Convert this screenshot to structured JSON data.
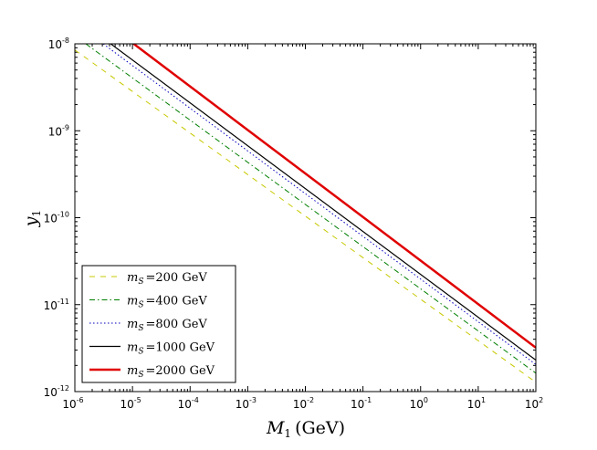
{
  "chart_data": {
    "type": "line",
    "xscale": "log",
    "yscale": "log",
    "xlim": [
      1e-06,
      100
    ],
    "ylim": [
      1e-12,
      1e-08
    ],
    "xlabel_var": "M",
    "xlabel_sub": "1",
    "xlabel_unit": "(GeV)",
    "ylabel_var": "y",
    "ylabel_sub": "1",
    "x_ticks": [
      {
        "value": 1e-06,
        "base": "10",
        "exp": "-6"
      },
      {
        "value": 1e-05,
        "base": "10",
        "exp": "-5"
      },
      {
        "value": 0.0001,
        "base": "10",
        "exp": "-4"
      },
      {
        "value": 0.001,
        "base": "10",
        "exp": "-3"
      },
      {
        "value": 0.01,
        "base": "10",
        "exp": "-2"
      },
      {
        "value": 0.1,
        "base": "10",
        "exp": "-1"
      },
      {
        "value": 1,
        "base": "10",
        "exp": "0"
      },
      {
        "value": 10,
        "base": "10",
        "exp": "1"
      },
      {
        "value": 100,
        "base": "10",
        "exp": "2"
      }
    ],
    "y_ticks": [
      {
        "value": 1e-12,
        "base": "10",
        "exp": "-12"
      },
      {
        "value": 1e-11,
        "base": "10",
        "exp": "-11"
      },
      {
        "value": 1e-10,
        "base": "10",
        "exp": "-10"
      },
      {
        "value": 1e-09,
        "base": "10",
        "exp": "-9"
      },
      {
        "value": 1e-08,
        "base": "10",
        "exp": "-8"
      }
    ],
    "series": [
      {
        "name": "m_S = 200 GeV",
        "mass_label": "=200 GeV",
        "color": "#c8c800",
        "style": "dashed",
        "width": 1,
        "x": [
          1e-06,
          100
        ],
        "y": [
          8.5e-09,
          1.28e-12
        ]
      },
      {
        "name": "m_S = 400 GeV",
        "mass_label": "=400 GeV",
        "color": "#007f00",
        "style": "dashdot",
        "width": 1,
        "x": [
          1.55e-06,
          100
        ],
        "y": [
          1e-08,
          1.63e-12
        ]
      },
      {
        "name": "m_S = 800 GeV",
        "mass_label": "=800 GeV",
        "color": "#0000bf",
        "style": "dotted",
        "width": 1,
        "x": [
          3.1e-06,
          100
        ],
        "y": [
          1e-08,
          2.05e-12
        ]
      },
      {
        "name": "m_S = 1000 GeV",
        "mass_label": "=1000 GeV",
        "color": "#000000",
        "style": "solid",
        "width": 1.2,
        "x": [
          4.2e-06,
          100
        ],
        "y": [
          1e-08,
          2.3e-12
        ]
      },
      {
        "name": "m_S = 2000 GeV",
        "mass_label": "=2000 GeV",
        "color": "#e00000",
        "style": "solid",
        "width": 2.5,
        "x": [
          1.05e-05,
          100
        ],
        "y": [
          1e-08,
          3.2e-12
        ]
      }
    ],
    "legend": {
      "location": "lower-left",
      "var": "m",
      "sub": "S"
    }
  }
}
